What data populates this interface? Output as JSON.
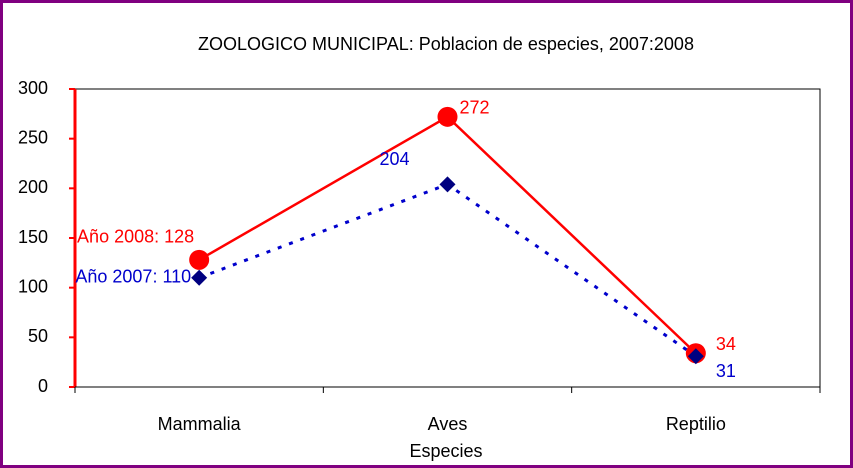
{
  "chart_data": {
    "type": "line",
    "title": "ZOOLOGICO MUNICIPAL: Poblacion de especies, 2007:2008",
    "x_label": "Especies",
    "categories": [
      "Mammalia",
      "Aves",
      "Reptilio"
    ],
    "series": [
      {
        "name": "Año 2008",
        "color": "#ff0000",
        "values": [
          128,
          272,
          34
        ],
        "value_labels": [
          "Año 2008: 128",
          "272",
          "34"
        ]
      },
      {
        "name": "Año 2007",
        "color": "#0000cc",
        "values": [
          110,
          204,
          31
        ],
        "value_labels": [
          "Año 2007: 110",
          "204",
          "31"
        ]
      }
    ],
    "ylim": [
      0,
      300
    ],
    "yticks": [
      0,
      50,
      100,
      150,
      200,
      250,
      300
    ]
  }
}
